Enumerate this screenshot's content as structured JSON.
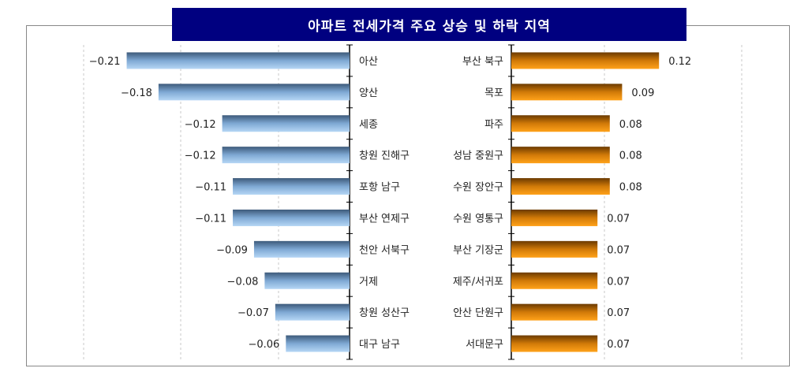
{
  "chart_data": [
    {
      "type": "bar",
      "orientation": "horizontal",
      "title": "아파트 전세가격 주요 상승 및 하락 지역",
      "categories": [
        "아산",
        "양산",
        "세종",
        "창원 진해구",
        "포항 남구",
        "부산 연제구",
        "천안 서북구",
        "거제",
        "창원 성산구",
        "대구 남구"
      ],
      "values": [
        -0.21,
        -0.18,
        -0.12,
        -0.12,
        -0.11,
        -0.11,
        -0.09,
        -0.08,
        -0.07,
        -0.06
      ],
      "color": "#7fb2e0",
      "grid": true
    },
    {
      "type": "bar",
      "orientation": "horizontal",
      "categories": [
        "부산 북구",
        "목포",
        "파주",
        "성남 중원구",
        "수원 장안구",
        "수원 영통구",
        "부산 기장군",
        "제주/서귀포",
        "안산 단원구",
        "서대문구"
      ],
      "values": [
        0.12,
        0.09,
        0.08,
        0.08,
        0.08,
        0.07,
        0.07,
        0.07,
        0.07,
        0.07
      ],
      "color": "#f0900a",
      "grid": true
    }
  ]
}
